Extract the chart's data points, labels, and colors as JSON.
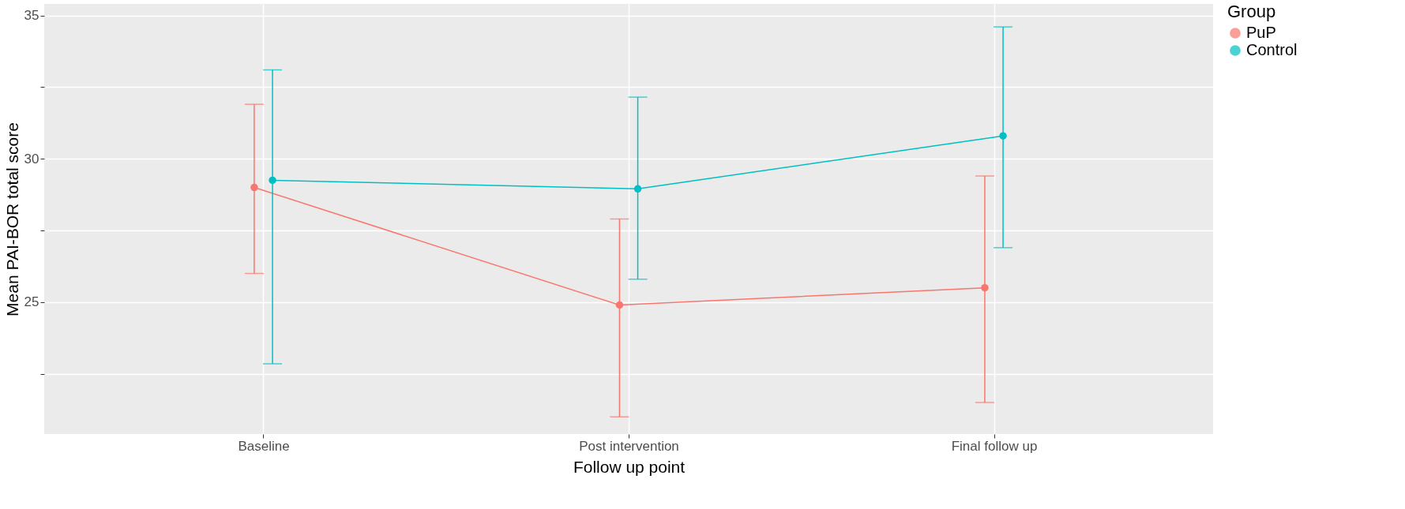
{
  "chart_data": {
    "type": "line",
    "xlabel": "Follow up point",
    "ylabel": "Mean PAI-BOR total score",
    "legend_title": "Group",
    "categories": [
      "Baseline",
      "Post intervention",
      "Final follow up"
    ],
    "series": [
      {
        "name": "PuP",
        "color": "#f8766d",
        "values": [
          29.0,
          24.9,
          25.5
        ],
        "errors": [
          [
            26.0,
            31.9
          ],
          [
            21.0,
            27.9
          ],
          [
            21.5,
            29.4
          ]
        ]
      },
      {
        "name": "Control",
        "color": "#00bfc4",
        "values": [
          29.25,
          28.95,
          30.8
        ],
        "errors": [
          [
            22.85,
            33.1
          ],
          [
            25.8,
            32.15
          ],
          [
            26.9,
            34.6
          ]
        ]
      }
    ],
    "ylim": [
      20.4,
      35.4
    ],
    "yticks": [
      {
        "value": 22.5,
        "label": null
      },
      25,
      {
        "value": 27.5,
        "label": null
      },
      30,
      {
        "value": 32.5,
        "label": null
      },
      35
    ],
    "grid": true,
    "marker": "circle",
    "legend": "right"
  }
}
